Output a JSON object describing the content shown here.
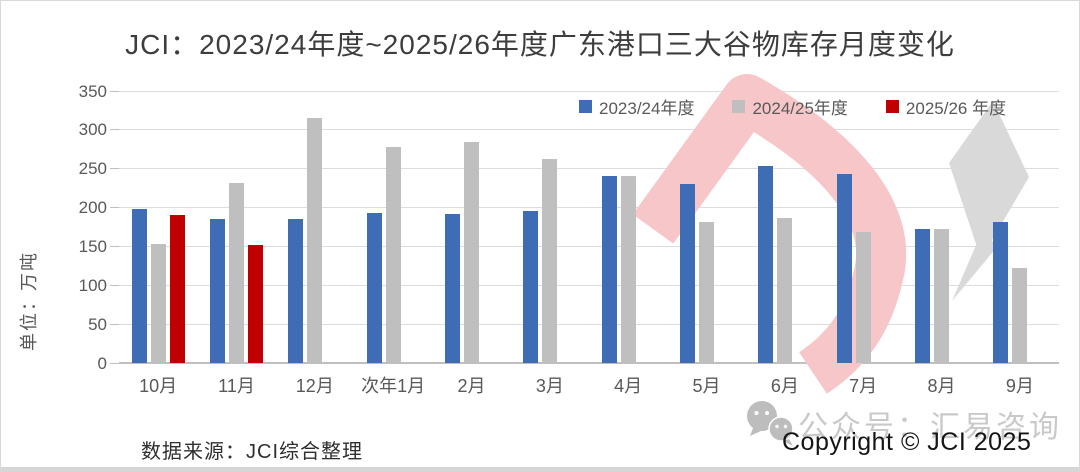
{
  "title": "JCI：2023/24年度~2025/26年度广东港口三大谷物库存月度变化",
  "chart_data": {
    "type": "bar",
    "title": "JCI：2023/24年度~2025/26年度广东港口三大谷物库存月度变化",
    "xlabel": "",
    "ylabel": "单位：万吨",
    "ylim": [
      0,
      350
    ],
    "ytick_step": 50,
    "grid": true,
    "legend_position": "top-inside",
    "categories": [
      "10月",
      "11月",
      "12月",
      "次年1月",
      "2月",
      "3月",
      "4月",
      "5月",
      "6月",
      "7月",
      "8月",
      "9月"
    ],
    "series": [
      {
        "name": "2023/24年度",
        "color": "#3f6db5",
        "values": [
          198,
          185,
          185,
          193,
          192,
          196,
          241,
          230,
          254,
          243,
          172,
          181
        ]
      },
      {
        "name": "2024/25年度",
        "color": "#bfbfbf",
        "values": [
          153,
          231,
          315,
          278,
          285,
          263,
          240,
          181,
          187,
          169,
          173,
          122
        ]
      },
      {
        "name": "2025/26 年度",
        "color": "#c00000",
        "values": [
          190,
          152,
          null,
          null,
          null,
          null,
          null,
          null,
          null,
          null,
          null,
          null
        ]
      }
    ]
  },
  "footer": {
    "source": "数据来源：JCI综合整理",
    "watermark_text": "公众号：汇易咨询",
    "copyright": "Copyright © JCI 2025"
  },
  "icons": {
    "wechat_icon": "wechat",
    "watermark_logo": "jci-red-arrow-and-gray-kite"
  },
  "colors": {
    "background": "#ffffff",
    "gridline": "#dcdcdc",
    "axis_line": "#bfbfbf",
    "tick_text": "#595959",
    "title_text": "#3d3d3d",
    "watermark_pink": "#f6c6c9",
    "watermark_gray": "#d9d9d9",
    "watermark_text_gray": "#c9c9c9"
  }
}
